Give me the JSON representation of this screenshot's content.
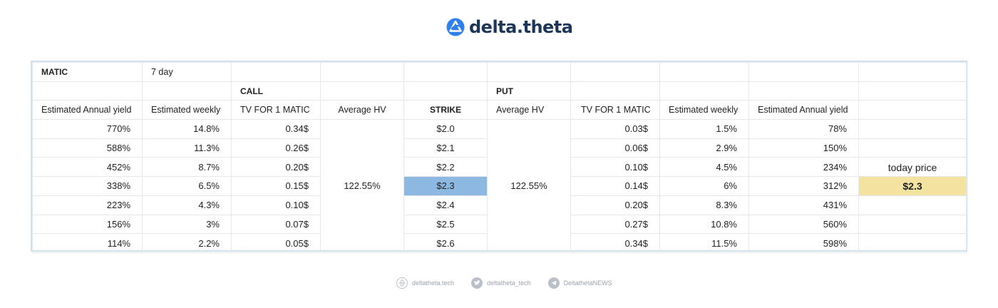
{
  "brand": {
    "name": "delta.theta",
    "icon": "delta-theta-logo-icon",
    "color": "#1d3557",
    "accent": "#2f80ed"
  },
  "table": {
    "asset": "MATIC",
    "period": "7 day",
    "call_label": "CALL",
    "put_label": "PUT",
    "headers": {
      "call_annual": "Estimated Annual yield",
      "call_weekly": "Estimated weekly",
      "call_tv": "TV FOR 1 MATIC",
      "call_hv": "Average HV",
      "strike": "STRIKE",
      "put_hv": "Average HV",
      "put_tv": "TV FOR 1 MATIC",
      "put_weekly": "Estimated weekly",
      "put_annual": "Estimated Annual yield"
    },
    "call_hv_value": "122.55%",
    "put_hv_value": "122.55%",
    "today_label": "today price",
    "today_value": "$2.3",
    "highlight_color_strike": "#8db8e2",
    "highlight_color_today": "#f3e3a0",
    "rows": [
      {
        "call_annual": "770%",
        "call_weekly": "14.8%",
        "call_tv": "0.34$",
        "strike": "$2.0",
        "put_tv": "0.03$",
        "put_weekly": "1.5%",
        "put_annual": "78%"
      },
      {
        "call_annual": "588%",
        "call_weekly": "11.3%",
        "call_tv": "0.26$",
        "strike": "$2.1",
        "put_tv": "0.06$",
        "put_weekly": "2.9%",
        "put_annual": "150%"
      },
      {
        "call_annual": "452%",
        "call_weekly": "8.7%",
        "call_tv": "0.20$",
        "strike": "$2.2",
        "put_tv": "0.10$",
        "put_weekly": "4.5%",
        "put_annual": "234%"
      },
      {
        "call_annual": "338%",
        "call_weekly": "6.5%",
        "call_tv": "0.15$",
        "strike": "$2.3",
        "put_tv": "0.14$",
        "put_weekly": "6%",
        "put_annual": "312%"
      },
      {
        "call_annual": "223%",
        "call_weekly": "4.3%",
        "call_tv": "0.10$",
        "strike": "$2.4",
        "put_tv": "0.20$",
        "put_weekly": "8.3%",
        "put_annual": "431%"
      },
      {
        "call_annual": "156%",
        "call_weekly": "3%",
        "call_tv": "0.07$",
        "strike": "$2.5",
        "put_tv": "0.27$",
        "put_weekly": "10.8%",
        "put_annual": "560%"
      },
      {
        "call_annual": "114%",
        "call_weekly": "2.2%",
        "call_tv": "0.05$",
        "strike": "$2.6",
        "put_tv": "0.34$",
        "put_weekly": "11.5%",
        "put_annual": "598%"
      }
    ]
  },
  "footer": {
    "website": {
      "label": "deltatheta.tech",
      "icon": "globe-icon"
    },
    "twitter": {
      "label": "deltatheta_tech",
      "icon": "twitter-icon"
    },
    "telegram": {
      "label": "DeltathetaNEWS",
      "icon": "telegram-icon"
    }
  }
}
